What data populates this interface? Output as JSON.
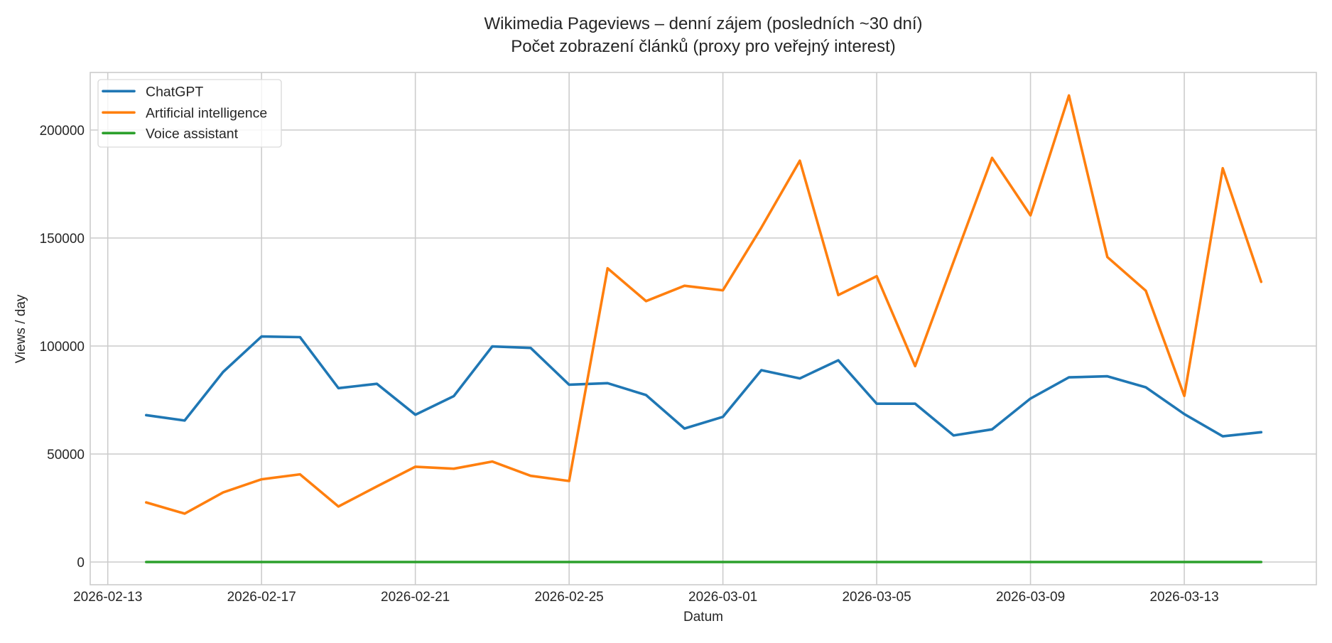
{
  "chart_data": {
    "type": "line",
    "title": "Wikimedia Pageviews – denní zájem (posledních ~30 dní)",
    "subtitle": "Počet zobrazení článků (proxy pro veřejný interest)",
    "xlabel": "Datum",
    "ylabel": "Views / day",
    "grid": true,
    "legend_position": "upper left",
    "ylim": [
      -10000,
      225000
    ],
    "xlim": [
      "2026-02-12T13:00",
      "2026-03-17T11:00"
    ],
    "x_ticks": [
      "2026-02-13",
      "2026-02-17",
      "2026-02-21",
      "2026-02-25",
      "2026-03-01",
      "2026-03-05",
      "2026-03-09",
      "2026-03-13"
    ],
    "y_ticks": [
      0,
      50000,
      100000,
      150000,
      200000
    ],
    "x": [
      "2026-02-14",
      "2026-02-15",
      "2026-02-16",
      "2026-02-17",
      "2026-02-18",
      "2026-02-19",
      "2026-02-20",
      "2026-02-21",
      "2026-02-22",
      "2026-02-23",
      "2026-02-24",
      "2026-02-25",
      "2026-02-26",
      "2026-02-27",
      "2026-02-28",
      "2026-03-01",
      "2026-03-02",
      "2026-03-03",
      "2026-03-04",
      "2026-03-05",
      "2026-03-06",
      "2026-03-07",
      "2026-03-08",
      "2026-03-09",
      "2026-03-10",
      "2026-03-11",
      "2026-03-12",
      "2026-03-13",
      "2026-03-14",
      "2026-03-15"
    ],
    "series": [
      {
        "name": "ChatGPT",
        "color": "#1f77b4",
        "values": [
          68000,
          65500,
          88000,
          104400,
          104100,
          80500,
          82500,
          68200,
          76800,
          99800,
          99100,
          82100,
          82800,
          77300,
          61800,
          67200,
          88800,
          85000,
          93400,
          73300,
          73300,
          58600,
          61400,
          75700,
          85500,
          86000,
          80900,
          68500,
          58200,
          60100
        ]
      },
      {
        "name": "Artificial intelligence",
        "color": "#ff7f0e",
        "values": [
          27600,
          22400,
          32200,
          38300,
          40600,
          25700,
          35000,
          44100,
          43200,
          46500,
          39900,
          37500,
          136000,
          120800,
          127900,
          125800,
          154800,
          185800,
          123600,
          132300,
          90700,
          139000,
          187100,
          160500,
          216000,
          141200,
          125600,
          76900,
          182300,
          129700
        ]
      },
      {
        "name": "Voice assistant",
        "color": "#2ca02c",
        "values": [
          0,
          0,
          0,
          0,
          0,
          0,
          0,
          0,
          0,
          0,
          0,
          0,
          0,
          0,
          0,
          0,
          0,
          0,
          0,
          0,
          0,
          0,
          0,
          0,
          0,
          0,
          0,
          0,
          0,
          0
        ]
      }
    ]
  },
  "style": {
    "grid_color": "#cccccc",
    "axis_color": "#cccccc",
    "text_color": "#262626",
    "legend_border": "#d9d9d9"
  }
}
